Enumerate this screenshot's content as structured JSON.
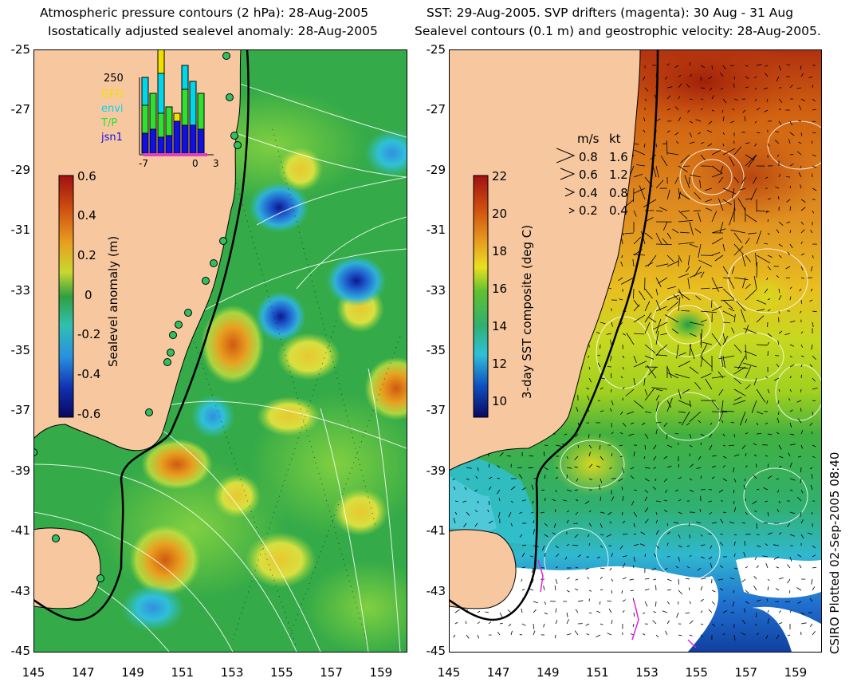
{
  "left_panel": {
    "title_line1": "Atmospheric pressure contours (2 hPa): 28-Aug-2005",
    "title_line2": "Isostatically adjusted sealevel anomaly: 28-Aug-2005",
    "colorbar": {
      "label": "Sealevel anomaly (m)",
      "ticks": [
        "0.6",
        "0.4",
        "0.2",
        "0",
        "-0.2",
        "-0.4",
        "-0.6"
      ],
      "range": [
        -0.6,
        0.6
      ]
    },
    "inset": {
      "ymax_label": "250",
      "legend": [
        {
          "name": "GFO",
          "color": "#f0e000"
        },
        {
          "name": "envi",
          "color": "#00d8e8"
        },
        {
          "name": "T/P",
          "color": "#30e030"
        },
        {
          "name": "jsn1",
          "color": "#1010e0"
        }
      ],
      "x_ticks": [
        "-7",
        "0",
        "3"
      ]
    }
  },
  "right_panel": {
    "title_line1": "SST: 29-Aug-2005. SVP drifters (magenta): 30 Aug - 31 Aug",
    "title_line2": "Sealevel contours (0.1 m) and geostrophic velocity: 28-Aug-2005.",
    "colorbar": {
      "label": "3-day SST composite (deg C)",
      "ticks": [
        "22",
        "20",
        "18",
        "16",
        "14",
        "12",
        "10"
      ],
      "range": [
        9,
        22
      ]
    },
    "velocity_key": {
      "header_ms": "m/s",
      "header_kt": "kt",
      "rows": [
        {
          "ms": "0.8",
          "kt": "1.6"
        },
        {
          "ms": "0.6",
          "kt": "1.2"
        },
        {
          "ms": "0.4",
          "kt": "0.8"
        },
        {
          "ms": "0.2",
          "kt": "0.4"
        }
      ]
    }
  },
  "axes": {
    "lat_ticks": [
      "-25",
      "-27",
      "-29",
      "-31",
      "-33",
      "-35",
      "-37",
      "-39",
      "-41",
      "-43",
      "-45"
    ],
    "lon_ticks": [
      "145",
      "147",
      "149",
      "151",
      "153",
      "155",
      "157",
      "159"
    ],
    "lat_range": [
      -45,
      -25
    ],
    "lon_range": [
      145,
      160
    ]
  },
  "credit": "CSIRO Plotted 02-Sep-2005 08:40",
  "colors": {
    "land": "#f7c8a0",
    "coast": "#000000"
  }
}
